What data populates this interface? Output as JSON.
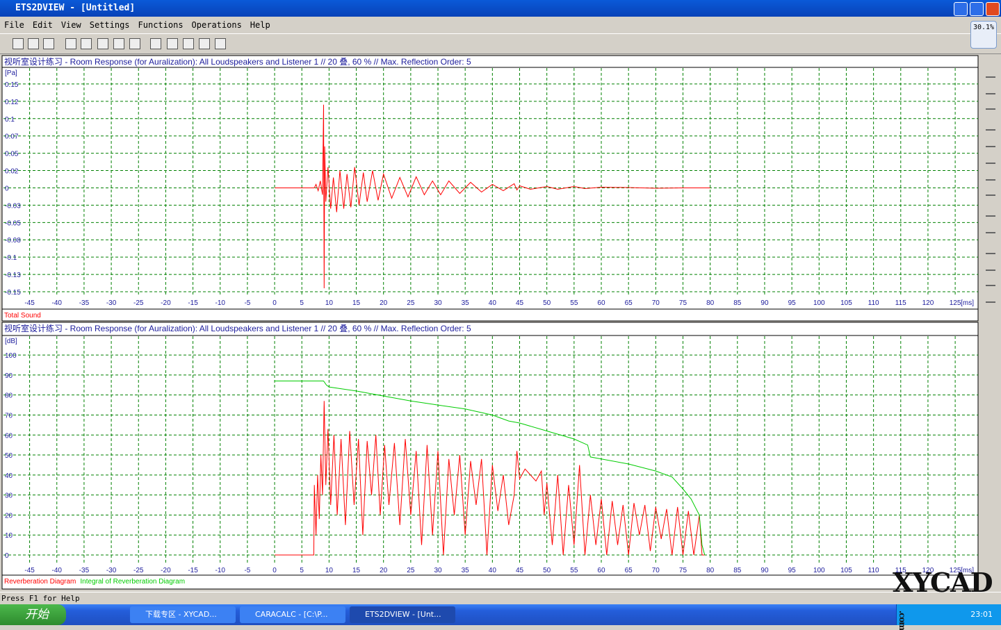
{
  "window": {
    "title": "ETS2DVIEW - [Untitled]",
    "zoom": "30.1%"
  },
  "menu": [
    "File",
    "Edit",
    "View",
    "Settings",
    "Functions",
    "Operations",
    "Help"
  ],
  "status": "Press F1 for Help",
  "taskbar": {
    "start": "开始",
    "tasks": [
      "下载专区 - XYCAD...",
      "CARACALC - [C:\\P...",
      "ETS2DVIEW - [Unt..."
    ],
    "clock": "23:01"
  },
  "watermark": {
    "text": "XYCAD",
    "suffix": ".com"
  },
  "chart_data": [
    {
      "type": "line",
      "title": "视听室设计练习 - Room Response (for Auralization):  All Loudspeakers and Listener 1 // 20 叠, 60 % // Max. Reflection Order: 5",
      "y_unit": "[Pa]",
      "x_unit": "[ms]",
      "grid": true,
      "xlim": [
        -49.8,
        129.2
      ],
      "ylim": [
        -0.157,
        0.173
      ],
      "xticks": [
        -45,
        -40,
        -35,
        -30,
        -25,
        -20,
        -15,
        -10,
        -5,
        0,
        5,
        10,
        15,
        20,
        25,
        30,
        35,
        40,
        45,
        50,
        55,
        60,
        65,
        70,
        75,
        80,
        85,
        90,
        95,
        100,
        105,
        110,
        115,
        120,
        125
      ],
      "yticks": [
        0.15,
        {
          "value": 0.125,
          "label": "0.12"
        },
        0.1,
        {
          "value": 0.075,
          "label": "0.07"
        },
        0.05,
        {
          "value": 0.025,
          "label": "0.02"
        },
        0,
        {
          "value": -0.025,
          "label": "-0.03"
        },
        -0.05,
        {
          "value": -0.075,
          "label": "-0.08"
        },
        -0.1,
        {
          "value": -0.125,
          "label": "-0.13"
        },
        -0.15
      ],
      "series": [
        {
          "name": "Total Sound",
          "color": "#ff0000",
          "x": [
            0,
            7.3,
            7.6,
            8,
            8.4,
            8.8,
            9.0,
            9.1,
            9.2,
            9.4,
            9.8,
            10.3,
            10.8,
            11.4,
            12,
            12.7,
            13.3,
            14,
            14.7,
            15.5,
            16.3,
            17,
            18,
            19,
            20,
            21.5,
            23,
            24.5,
            26,
            27.5,
            29,
            30.5,
            32,
            34,
            36,
            38,
            40,
            42,
            44,
            44.5,
            45,
            47,
            50,
            52,
            55,
            57,
            60,
            65,
            70,
            75,
            80
          ],
          "values": [
            0,
            0,
            0.005,
            -0.004,
            0.01,
            -0.01,
            0.12,
            -0.145,
            0.06,
            -0.02,
            0.03,
            -0.03,
            0.015,
            -0.035,
            0.025,
            -0.03,
            0.02,
            -0.028,
            0.03,
            -0.025,
            0.022,
            -0.02,
            0.025,
            -0.018,
            0.02,
            -0.015,
            0.015,
            -0.013,
            0.016,
            -0.01,
            0.01,
            -0.01,
            0.01,
            -0.008,
            0.008,
            -0.006,
            0.005,
            -0.004,
            0.006,
            -0.003,
            0.003,
            -0.002,
            0.002,
            -0.002,
            0.002,
            -0.001,
            0.001,
            0.0005,
            -0.0005,
            0,
            0
          ]
        }
      ]
    },
    {
      "type": "line",
      "title": "视听室设计练习 - Room Response (for Auralization):  All Loudspeakers and Listener 1 // 20 叠, 60 % // Max. Reflection Order: 5",
      "y_unit": "[dB]",
      "x_unit": "[ms]",
      "grid": true,
      "xlim": [
        -49.8,
        129.2
      ],
      "ylim": [
        -4.5,
        109.4
      ],
      "xticks": [
        -45,
        -40,
        -35,
        -30,
        -25,
        -20,
        -15,
        -10,
        -5,
        0,
        5,
        10,
        15,
        20,
        25,
        30,
        35,
        40,
        45,
        50,
        55,
        60,
        65,
        70,
        75,
        80,
        85,
        90,
        95,
        100,
        105,
        110,
        115,
        120,
        125
      ],
      "yticks": [
        100,
        90,
        80,
        70,
        60,
        50,
        40,
        30,
        20,
        10,
        0
      ],
      "series": [
        {
          "name": "Reverberation Diagram",
          "color": "#ff0000",
          "x": [
            0,
            7.2,
            7.3,
            7.6,
            7.9,
            8.2,
            8.5,
            8.8,
            9.1,
            9.4,
            9.8,
            10.3,
            10.9,
            11.5,
            12.2,
            13,
            13.8,
            14.6,
            15.4,
            16.2,
            17,
            17.8,
            18.6,
            19.4,
            20.2,
            21,
            22,
            23,
            24,
            25,
            26,
            27,
            28,
            29,
            30,
            31,
            32,
            33,
            34,
            35,
            36,
            37,
            38,
            39,
            40,
            41,
            42,
            43,
            44,
            44.5,
            45,
            46,
            47,
            48,
            49,
            49.5,
            50,
            51,
            52,
            53,
            54,
            55,
            56,
            57,
            58,
            59,
            60,
            61,
            62,
            63,
            64,
            65,
            66,
            67,
            68,
            69,
            70,
            71,
            72,
            73,
            74,
            75,
            76,
            77,
            78,
            78.5,
            79
          ],
          "values": [
            0,
            0,
            35,
            10,
            40,
            18,
            50,
            30,
            77,
            35,
            63,
            25,
            60,
            20,
            58,
            15,
            62,
            25,
            58,
            10,
            57,
            30,
            60,
            20,
            55,
            25,
            56,
            15,
            58,
            20,
            52,
            5,
            55,
            10,
            52,
            0,
            48,
            20,
            50,
            10,
            47,
            25,
            48,
            0,
            45,
            22,
            40,
            15,
            30,
            52,
            38,
            43,
            40,
            37,
            42,
            20,
            36,
            5,
            40,
            0,
            35,
            5,
            45,
            0,
            30,
            5,
            28,
            0,
            27,
            5,
            25,
            0,
            26,
            10,
            25,
            2,
            24,
            8,
            23,
            0,
            24,
            0,
            22,
            0,
            20,
            0,
            0
          ]
        },
        {
          "name": "Integral of Reverberation Diagram",
          "color": "#00cc00",
          "x": [
            0,
            9,
            9.5,
            10,
            15,
            20,
            25,
            30,
            35,
            40,
            43,
            45,
            50,
            55,
            57.5,
            58,
            60,
            65,
            70,
            73,
            75,
            76.5,
            78,
            78.5,
            79
          ],
          "values": [
            87,
            87,
            85,
            84,
            82,
            79.5,
            77,
            75,
            73,
            70,
            67,
            66,
            62,
            58,
            55,
            49,
            48,
            45.5,
            42,
            39,
            33,
            28,
            20,
            5,
            0
          ]
        }
      ]
    }
  ]
}
